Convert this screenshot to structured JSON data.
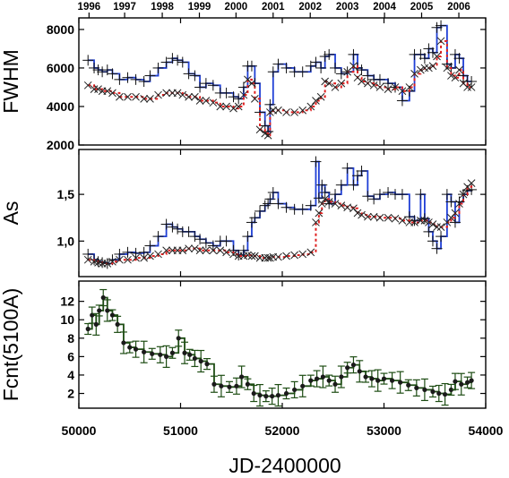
{
  "chart_data": {
    "type": "line",
    "xlabel": "JD-2400000",
    "xlim": [
      50000,
      54000
    ],
    "x_ticks": [
      "50000",
      "51000",
      "52000",
      "53000",
      "54000"
    ],
    "top_axis_years": [
      {
        "label": "1996",
        "jd": 50100
      },
      {
        "label": "1997",
        "jd": 50450
      },
      {
        "label": "1998",
        "jd": 50820
      },
      {
        "label": "1999",
        "jd": 51185
      },
      {
        "label": "2000",
        "jd": 51545
      },
      {
        "label": "2001",
        "jd": 51910
      },
      {
        "label": "2002",
        "jd": 52275
      },
      {
        "label": "2003",
        "jd": 52640
      },
      {
        "label": "2004",
        "jd": 53005
      },
      {
        "label": "2005",
        "jd": 53370
      },
      {
        "label": "2006",
        "jd": 53736
      }
    ],
    "panels": [
      {
        "ylabel": "FWHM",
        "ylim": [
          2000,
          8600
        ],
        "y_ticks": [
          "2000",
          "4000",
          "6000",
          "8000"
        ],
        "series": [
          {
            "color": "#1f3fd6",
            "x": [
              50090,
              50150,
              50190,
              50230,
              50280,
              50330,
              50400,
              50480,
              50560,
              50640,
              50700,
              50780,
              50860,
              50920,
              50970,
              51020,
              51080,
              51140,
              51190,
              51250,
              51320,
              51390,
              51450,
              51520,
              51570,
              51620,
              51660,
              51700,
              51730,
              51780,
              51830,
              51860,
              51880,
              51910,
              51960,
              52040,
              52120,
              52200,
              52280,
              52330,
              52380,
              52420,
              52460,
              52520,
              52580,
              52640,
              52700,
              52740,
              52780,
              52840,
              52900,
              52960,
              53040,
              53110,
              53180,
              53250,
              53300,
              53360,
              53400,
              53440,
              53480,
              53520,
              53560,
              53620,
              53660,
              53700,
              53740,
              53780,
              53820,
              53860
            ],
            "y": [
              6400,
              6000,
              5900,
              5800,
              5900,
              5700,
              5400,
              5500,
              5400,
              5300,
              5600,
              6000,
              6300,
              6500,
              6400,
              6300,
              5700,
              5600,
              5000,
              5200,
              5100,
              4700,
              4700,
              4500,
              4400,
              5000,
              6100,
              6100,
              5200,
              3700,
              3000,
              2700,
              4100,
              5800,
              6200,
              6000,
              5800,
              5800,
              6100,
              6300,
              6000,
              6600,
              6700,
              6000,
              5700,
              5800,
              6700,
              6000,
              5900,
              5600,
              5400,
              5400,
              5200,
              5000,
              4300,
              4800,
              6700,
              6700,
              6500,
              7000,
              6800,
              8100,
              8200,
              6200,
              6000,
              6700,
              6500,
              5600,
              5300,
              5300
            ]
          },
          {
            "color": "#e02020",
            "x": [
              50090,
              50150,
              50190,
              50230,
              50280,
              50330,
              50400,
              50480,
              50560,
              50640,
              50700,
              50780,
              50860,
              50920,
              50970,
              51020,
              51080,
              51140,
              51190,
              51250,
              51320,
              51390,
              51450,
              51520,
              51570,
              51620,
              51660,
              51700,
              51730,
              51780,
              51830,
              51860,
              51880,
              51910,
              51960,
              52040,
              52120,
              52200,
              52280,
              52330,
              52380,
              52420,
              52460,
              52520,
              52580,
              52640,
              52700,
              52740,
              52780,
              52840,
              52900,
              52960,
              53040,
              53110,
              53180,
              53250,
              53300,
              53360,
              53400,
              53440,
              53480,
              53520,
              53560,
              53620,
              53660,
              53700,
              53740,
              53780,
              53820,
              53860
            ],
            "y": [
              5100,
              4900,
              4900,
              4800,
              4800,
              4700,
              4500,
              4500,
              4500,
              4400,
              4400,
              4600,
              4700,
              4700,
              4700,
              4600,
              4500,
              4500,
              4300,
              4300,
              4200,
              4000,
              4000,
              3900,
              4000,
              4600,
              5400,
              5200,
              4400,
              2800,
              2600,
              2500,
              3700,
              3800,
              3800,
              3700,
              3700,
              3800,
              4000,
              4300,
              4500,
              5300,
              5200,
              5000,
              5200,
              5800,
              6100,
              5500,
              5300,
              5200,
              5100,
              5000,
              4900,
              5000,
              4800,
              5000,
              5700,
              5900,
              6000,
              6000,
              6100,
              6600,
              7400,
              6000,
              5600,
              5500,
              5900,
              5200,
              5000,
              5000
            ]
          }
        ]
      },
      {
        "ylabel": "As",
        "ylim": [
          0.62,
          1.98
        ],
        "y_ticks": [
          "1,0",
          "1,5"
        ],
        "series": [
          {
            "color": "#1f3fd6",
            "x": [
              50090,
              50150,
              50190,
              50230,
              50280,
              50330,
              50400,
              50480,
              50560,
              50640,
              50700,
              50780,
              50860,
              50920,
              50970,
              51020,
              51080,
              51140,
              51190,
              51250,
              51320,
              51390,
              51450,
              51520,
              51570,
              51620,
              51660,
              51700,
              51730,
              51780,
              51830,
              51860,
              51880,
              51910,
              51960,
              52040,
              52120,
              52200,
              52280,
              52330,
              52360,
              52390,
              52420,
              52460,
              52520,
              52580,
              52640,
              52700,
              52740,
              52780,
              52840,
              52900,
              52960,
              53040,
              53110,
              53180,
              53250,
              53300,
              53360,
              53400,
              53440,
              53480,
              53520,
              53560,
              53620,
              53660,
              53700,
              53740,
              53780,
              53820,
              53860
            ],
            "y": [
              0.86,
              0.8,
              0.78,
              0.77,
              0.76,
              0.8,
              0.86,
              0.88,
              0.87,
              0.88,
              0.95,
              1.05,
              1.18,
              1.15,
              1.13,
              1.1,
              1.1,
              1.05,
              1.02,
              0.98,
              0.95,
              1.0,
              1.0,
              0.9,
              0.85,
              0.9,
              1.05,
              1.2,
              1.25,
              1.32,
              1.38,
              1.4,
              1.45,
              1.52,
              1.4,
              1.36,
              1.34,
              1.34,
              1.38,
              1.85,
              1.46,
              1.6,
              1.52,
              1.4,
              1.5,
              1.6,
              1.78,
              1.6,
              1.7,
              1.75,
              1.48,
              1.45,
              1.5,
              1.52,
              1.5,
              1.5,
              1.26,
              1.22,
              1.5,
              1.24,
              1.1,
              1.0,
              0.92,
              1.05,
              1.5,
              1.42,
              1.2,
              1.42,
              1.5,
              1.54,
              1.55
            ]
          },
          {
            "color": "#e02020",
            "x": [
              50090,
              50150,
              50190,
              50230,
              50280,
              50330,
              50400,
              50480,
              50560,
              50640,
              50700,
              50780,
              50860,
              50920,
              50970,
              51020,
              51080,
              51140,
              51190,
              51250,
              51320,
              51390,
              51450,
              51520,
              51570,
              51620,
              51660,
              51700,
              51730,
              51780,
              51830,
              51860,
              51880,
              51910,
              51960,
              52040,
              52120,
              52200,
              52280,
              52330,
              52360,
              52390,
              52420,
              52460,
              52520,
              52580,
              52640,
              52700,
              52740,
              52780,
              52840,
              52900,
              52960,
              53040,
              53110,
              53180,
              53250,
              53300,
              53360,
              53400,
              53440,
              53480,
              53520,
              53560,
              53620,
              53660,
              53700,
              53740,
              53780,
              53820,
              53860
            ],
            "y": [
              0.8,
              0.78,
              0.77,
              0.76,
              0.76,
              0.78,
              0.8,
              0.8,
              0.82,
              0.82,
              0.84,
              0.86,
              0.9,
              0.9,
              0.9,
              0.9,
              0.92,
              0.92,
              0.9,
              0.9,
              0.9,
              0.9,
              0.88,
              0.86,
              0.84,
              0.84,
              0.85,
              0.84,
              0.84,
              0.82,
              0.82,
              0.82,
              0.82,
              0.83,
              0.83,
              0.84,
              0.85,
              0.86,
              0.88,
              1.2,
              1.3,
              1.4,
              1.45,
              1.42,
              1.4,
              1.38,
              1.36,
              1.35,
              1.3,
              1.28,
              1.26,
              1.26,
              1.25,
              1.25,
              1.24,
              1.22,
              1.2,
              1.2,
              1.22,
              1.22,
              1.2,
              1.18,
              1.15,
              1.15,
              1.2,
              1.25,
              1.3,
              1.4,
              1.5,
              1.58,
              1.62
            ]
          }
        ]
      },
      {
        "ylabel": "Fcnt(5100A)",
        "ylim": [
          0.4,
          14.2
        ],
        "y_ticks": [
          "2",
          "4",
          "6",
          "8",
          "10",
          "12"
        ],
        "series": [
          {
            "color": "#1e4d14",
            "x": [
              50090,
              50130,
              50170,
              50200,
              50240,
              50280,
              50330,
              50380,
              50440,
              50500,
              50560,
              50640,
              50720,
              50800,
              50860,
              50920,
              50980,
              51040,
              51090,
              51140,
              51200,
              51260,
              51330,
              51400,
              51480,
              51550,
              51600,
              51660,
              51720,
              51780,
              51840,
              51900,
              51960,
              52040,
              52120,
              52200,
              52280,
              52340,
              52400,
              52460,
              52520,
              52580,
              52640,
              52700,
              52760,
              52820,
              52880,
              52940,
              53000,
              53080,
              53160,
              53240,
              53320,
              53400,
              53480,
              53540,
              53600,
              53660,
              53700,
              53760,
              53820,
              53860
            ],
            "y": [
              9.0,
              10.5,
              9.5,
              11.0,
              12.4,
              11.0,
              10.5,
              9.5,
              7.5,
              7.0,
              6.8,
              6.5,
              6.3,
              6.2,
              6.0,
              6.4,
              8.0,
              6.4,
              6.2,
              5.8,
              5.5,
              5.2,
              3.0,
              2.8,
              2.7,
              2.8,
              3.8,
              3.0,
              2.0,
              1.8,
              1.7,
              1.7,
              1.8,
              2.0,
              2.4,
              2.8,
              3.4,
              3.6,
              3.8,
              3.4,
              3.0,
              3.8,
              4.8,
              5.1,
              4.4,
              3.8,
              3.6,
              3.4,
              3.6,
              3.4,
              3.2,
              2.9,
              2.6,
              2.4,
              2.2,
              2.0,
              1.9,
              2.4,
              3.3,
              3.0,
              3.2,
              3.4
            ]
          }
        ]
      }
    ]
  }
}
